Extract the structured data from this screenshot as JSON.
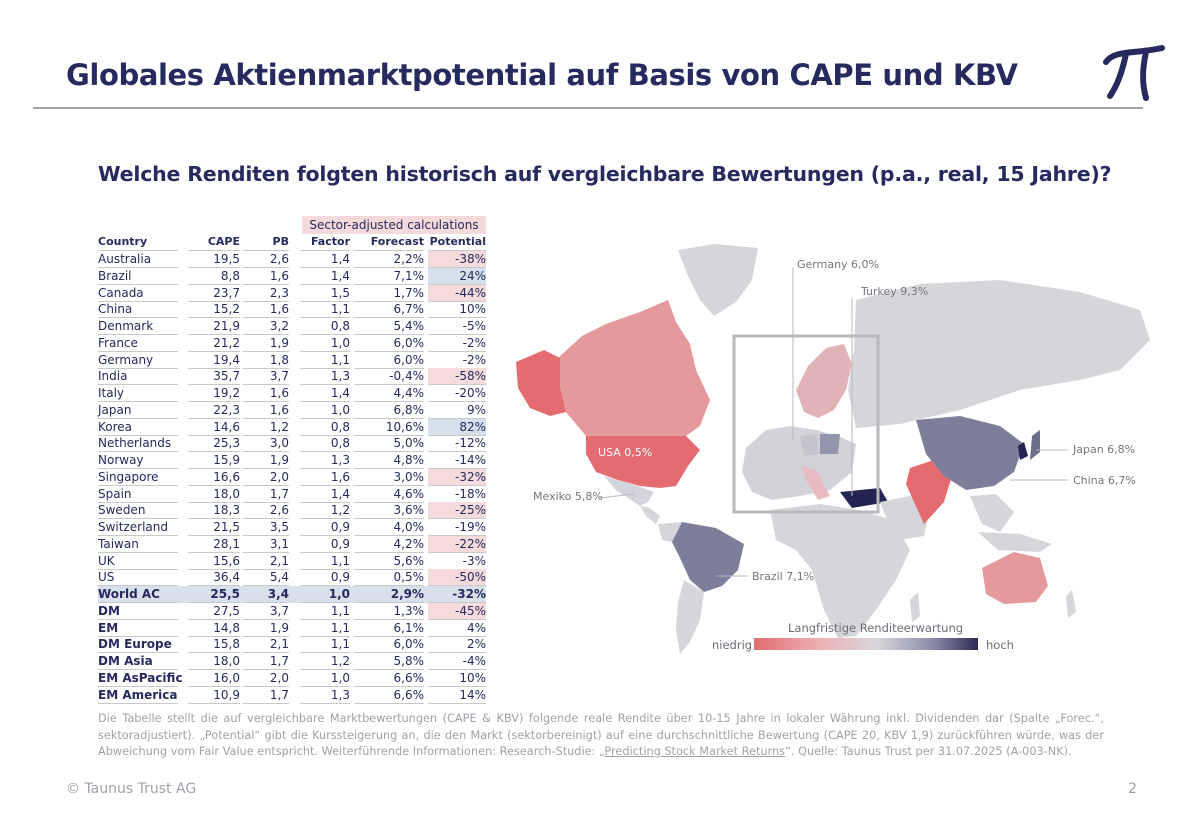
{
  "header": {
    "title": "Globales Aktienmarktpotential auf Basis von CAPE und KBV",
    "subtitle": "Welche Renditen folgten historisch auf vergleichbare Bewertungen (p.a., real, 15 Jahre)?"
  },
  "colors": {
    "navy": "#262a5e",
    "neg": "#f6dbdc",
    "pos": "#d4e0ec",
    "highlight": "#d6e1ec"
  },
  "table": {
    "sector_header": "Sector-adjusted calculations",
    "columns": {
      "country": "Country",
      "cape": "CAPE",
      "pb": "PB",
      "factor": "Factor",
      "forecast": "Forecast",
      "potential": "Potential"
    },
    "rows": [
      {
        "country": "Australia",
        "cape": "19,5",
        "pb": "2,6",
        "factor": "1,4",
        "forecast": "2,2%",
        "potential": "-38%",
        "shade": "neg"
      },
      {
        "country": "Brazil",
        "cape": "8,8",
        "pb": "1,6",
        "factor": "1,4",
        "forecast": "7,1%",
        "potential": "24%",
        "shade": "pos"
      },
      {
        "country": "Canada",
        "cape": "23,7",
        "pb": "2,3",
        "factor": "1,5",
        "forecast": "1,7%",
        "potential": "-44%",
        "shade": "neg"
      },
      {
        "country": "China",
        "cape": "15,2",
        "pb": "1,6",
        "factor": "1,1",
        "forecast": "6,7%",
        "potential": "10%",
        "shade": ""
      },
      {
        "country": "Denmark",
        "cape": "21,9",
        "pb": "3,2",
        "factor": "0,8",
        "forecast": "5,4%",
        "potential": "-5%",
        "shade": ""
      },
      {
        "country": "France",
        "cape": "21,2",
        "pb": "1,9",
        "factor": "1,0",
        "forecast": "6,0%",
        "potential": "-2%",
        "shade": ""
      },
      {
        "country": "Germany",
        "cape": "19,4",
        "pb": "1,8",
        "factor": "1,1",
        "forecast": "6,0%",
        "potential": "-2%",
        "shade": ""
      },
      {
        "country": "India",
        "cape": "35,7",
        "pb": "3,7",
        "factor": "1,3",
        "forecast": "-0,4%",
        "potential": "-58%",
        "shade": "neg"
      },
      {
        "country": "Italy",
        "cape": "19,2",
        "pb": "1,6",
        "factor": "1,4",
        "forecast": "4,4%",
        "potential": "-20%",
        "shade": ""
      },
      {
        "country": "Japan",
        "cape": "22,3",
        "pb": "1,6",
        "factor": "1,0",
        "forecast": "6,8%",
        "potential": "9%",
        "shade": ""
      },
      {
        "country": "Korea",
        "cape": "14,6",
        "pb": "1,2",
        "factor": "0,8",
        "forecast": "10,6%",
        "potential": "82%",
        "shade": "pos"
      },
      {
        "country": "Netherlands",
        "cape": "25,3",
        "pb": "3,0",
        "factor": "0,8",
        "forecast": "5,0%",
        "potential": "-12%",
        "shade": ""
      },
      {
        "country": "Norway",
        "cape": "15,9",
        "pb": "1,9",
        "factor": "1,3",
        "forecast": "4,8%",
        "potential": "-14%",
        "shade": ""
      },
      {
        "country": "Singapore",
        "cape": "16,6",
        "pb": "2,0",
        "factor": "1,6",
        "forecast": "3,0%",
        "potential": "-32%",
        "shade": "neg"
      },
      {
        "country": "Spain",
        "cape": "18,0",
        "pb": "1,7",
        "factor": "1,4",
        "forecast": "4,6%",
        "potential": "-18%",
        "shade": ""
      },
      {
        "country": "Sweden",
        "cape": "18,3",
        "pb": "2,6",
        "factor": "1,2",
        "forecast": "3,6%",
        "potential": "-25%",
        "shade": "neg"
      },
      {
        "country": "Switzerland",
        "cape": "21,5",
        "pb": "3,5",
        "factor": "0,9",
        "forecast": "4,0%",
        "potential": "-19%",
        "shade": ""
      },
      {
        "country": "Taiwan",
        "cape": "28,1",
        "pb": "3,1",
        "factor": "0,9",
        "forecast": "4,2%",
        "potential": "-22%",
        "shade": "neg"
      },
      {
        "country": "UK",
        "cape": "15,6",
        "pb": "2,1",
        "factor": "1,1",
        "forecast": "5,6%",
        "potential": "-3%",
        "shade": ""
      },
      {
        "country": "US",
        "cape": "36,4",
        "pb": "5,4",
        "factor": "0,9",
        "forecast": "0,5%",
        "potential": "-50%",
        "shade": "neg"
      },
      {
        "country": "World AC",
        "cape": "25,5",
        "pb": "3,4",
        "factor": "1,0",
        "forecast": "2,9%",
        "potential": "-32%",
        "shade": "highlight",
        "bold": true
      },
      {
        "country": "DM",
        "cape": "27,5",
        "pb": "3,7",
        "factor": "1,1",
        "forecast": "1,3%",
        "potential": "-45%",
        "shade": "neg",
        "bold_country": true
      },
      {
        "country": "EM",
        "cape": "14,8",
        "pb": "1,9",
        "factor": "1,1",
        "forecast": "6,1%",
        "potential": "4%",
        "shade": "",
        "bold_country": true
      },
      {
        "country": "DM Europe",
        "cape": "15,8",
        "pb": "2,1",
        "factor": "1,1",
        "forecast": "6,0%",
        "potential": "2%",
        "shade": "",
        "bold_country": true
      },
      {
        "country": "DM Asia",
        "cape": "18,0",
        "pb": "1,7",
        "factor": "1,2",
        "forecast": "5,8%",
        "potential": "-4%",
        "shade": "",
        "bold_country": true
      },
      {
        "country": "EM AsPacific",
        "cape": "16,0",
        "pb": "2,0",
        "factor": "1,0",
        "forecast": "6,6%",
        "potential": "10%",
        "shade": "",
        "bold_country": true
      },
      {
        "country": "EM America",
        "cape": "10,9",
        "pb": "1,7",
        "factor": "1,3",
        "forecast": "6,6%",
        "potential": "14%",
        "shade": "",
        "bold_country": true
      }
    ]
  },
  "map": {
    "labels": {
      "germany": "Germany 6,0%",
      "turkey": "Turkey 9,3%",
      "japan": "Japan 6,8%",
      "china": "China 6,7%",
      "usa": "USA 0,5%",
      "mexiko": "Mexiko 5,8%",
      "brazil": "Brazil 7,1%"
    },
    "legend": {
      "title": "Langfristige Renditeerwartung",
      "low": "niedrig",
      "high": "hoch"
    }
  },
  "footnote": {
    "text_before_link": "Die Tabelle stellt die auf vergleichbare Marktbewertungen (CAPE & KBV) folgende reale Rendite über 10-15 Jahre in lokaler Währung inkl. Dividenden dar (Spalte „Forec.“, sektoradjustiert). „Potential“ gibt die Kurssteigerung an, die den Markt (sektorbereinigt) auf eine durchschnittliche Bewertung (CAPE 20, KBV 1,9) zurückführen würde, was der Abweichung vom Fair Value entspricht. Weiterführende Informationen: Research-Studie: „",
    "link": "Predicting Stock Market Returns",
    "text_after_link": "“. Quelle: Taunus Trust per 31.07.2025 (A-003-NK)."
  },
  "footer": {
    "copyright": "© Taunus Trust AG",
    "page": "2"
  }
}
